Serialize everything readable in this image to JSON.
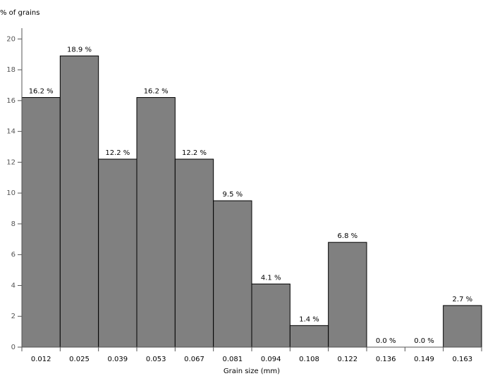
{
  "chart_data": {
    "type": "bar",
    "y_label": "% of grains",
    "x_label": "Grain size (mm)",
    "categories": [
      "0.012",
      "0.025",
      "0.039",
      "0.053",
      "0.067",
      "0.081",
      "0.094",
      "0.108",
      "0.122",
      "0.136",
      "0.149",
      "0.163"
    ],
    "values": [
      16.2,
      18.9,
      12.2,
      16.2,
      12.2,
      9.5,
      4.1,
      1.4,
      6.8,
      0,
      0,
      2.7
    ],
    "value_labels": [
      "16.2 %",
      "18.9 %",
      "12.2 %",
      "16.2 %",
      "12.2 %",
      "9.5 %",
      "4.1 %",
      "1.4 %",
      "6.8 %",
      "0.0 %",
      "0.0 %",
      "2.7 %"
    ],
    "color": "#808080",
    "ylim": [
      0,
      20.7
    ],
    "yticks": [
      0,
      2,
      4,
      6,
      8,
      10,
      12,
      14,
      16,
      18,
      20
    ]
  }
}
